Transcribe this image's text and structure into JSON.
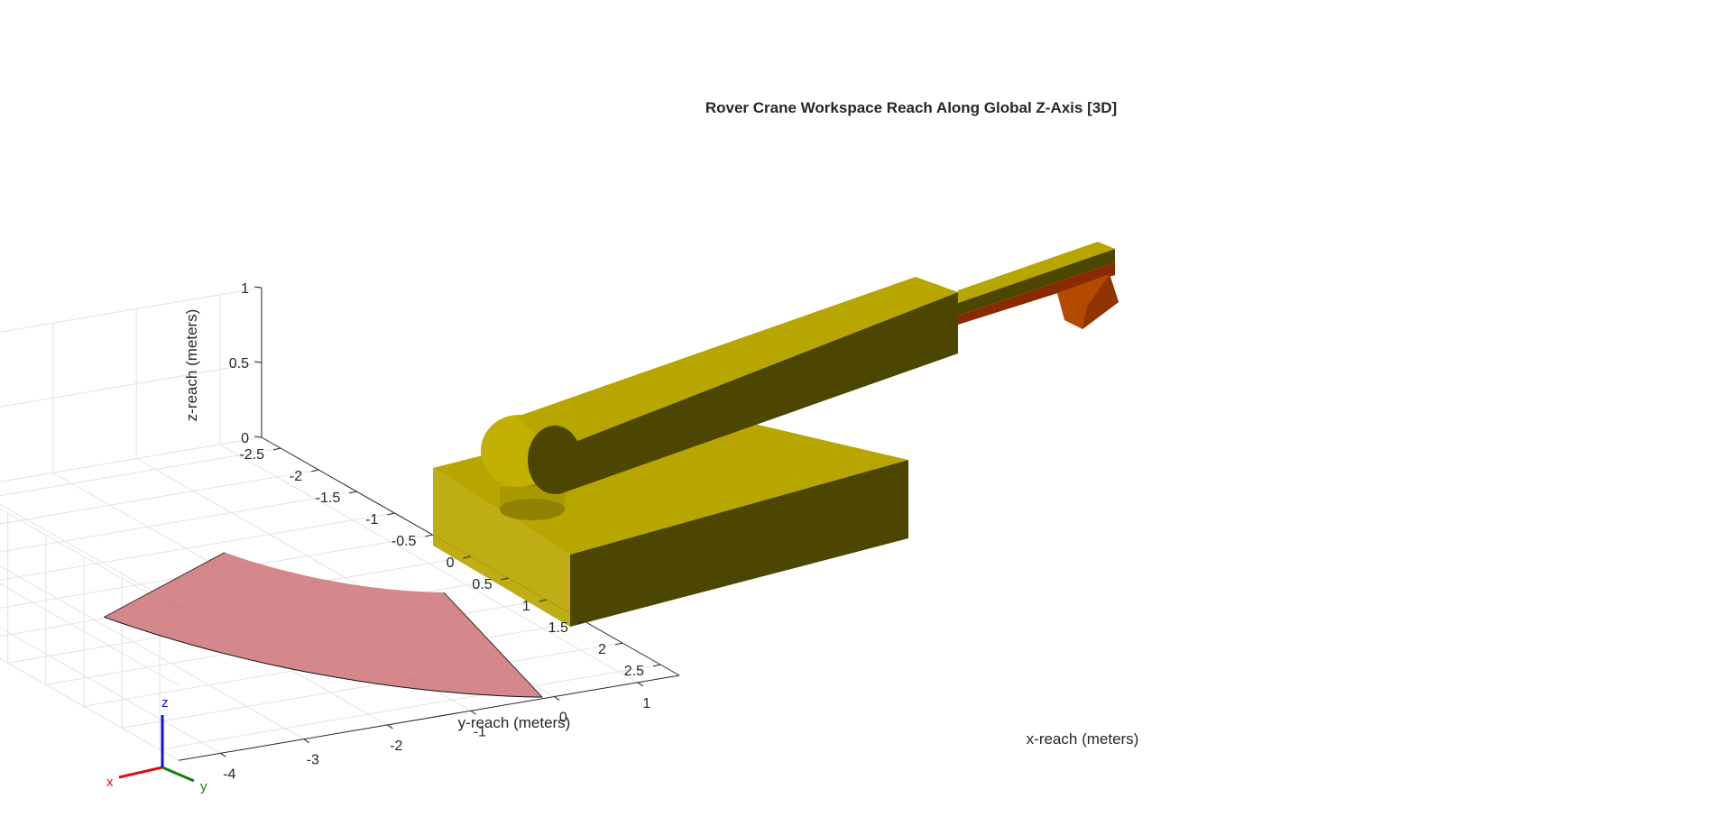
{
  "chart_data": {
    "type": "3d-surface",
    "title": "Rover Crane Workspace Reach Along Global Z-Axis [3D]",
    "xlabel": "x-reach (meters)",
    "ylabel": "y-reach (meters)",
    "zlabel": "z-reach (meters)",
    "xlim": [
      -4.5,
      1.5
    ],
    "ylim": [
      -2.75,
      2.75
    ],
    "zlim": [
      0,
      1
    ],
    "x_ticks": [
      1,
      0,
      -1,
      -2,
      -3,
      -4
    ],
    "x_tick_labels": [
      "1",
      "0",
      "-1",
      "-2",
      "-3",
      "-4"
    ],
    "y_ticks": [
      -2.5,
      -2,
      -1.5,
      -1,
      -0.5,
      0,
      0.5,
      1,
      1.5,
      2,
      2.5
    ],
    "y_tick_labels": [
      "-2.5",
      "-2",
      "-1.5",
      "-1",
      "-0.5",
      "0",
      "0.5",
      "1",
      "1.5",
      "2",
      "2.5"
    ],
    "z_ticks": [
      0,
      0.5,
      1
    ],
    "z_tick_labels": [
      "0",
      "0.5",
      "1"
    ],
    "grid": true,
    "workspace_surface": {
      "color": "#c96a6e",
      "opacity": 0.8,
      "inner_radius": 2.3,
      "outer_radius": 4.6,
      "angle_range_deg": [
        110,
        160
      ],
      "z": 0.6
    },
    "crane_color": "#b8a600",
    "crane_shadow_color": "#4d4600",
    "tip_color": "#b34a00",
    "orientation_triad": {
      "x_label": "x",
      "y_label": "y",
      "z_label": "z",
      "x_color": "#e01010",
      "y_color": "#108010",
      "z_color": "#1010e0"
    }
  }
}
